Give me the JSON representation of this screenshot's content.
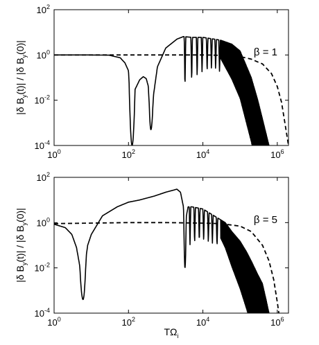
{
  "chart_data": [
    {
      "type": "line",
      "x_scale": "log",
      "y_scale": "log",
      "xlim": [
        1,
        2000000
      ],
      "ylim": [
        0.0001,
        100
      ],
      "x_ticks": [
        1,
        100,
        10000,
        1000000
      ],
      "y_ticks": [
        0.0001,
        0.01,
        1,
        100
      ],
      "x_tick_labels": [
        {
          "base": "10",
          "exp": "0"
        },
        {
          "base": "10",
          "exp": "2"
        },
        {
          "base": "10",
          "exp": "4"
        },
        {
          "base": "10",
          "exp": "6"
        }
      ],
      "y_tick_labels": [
        {
          "base": "10",
          "exp": "-4"
        },
        {
          "base": "10",
          "exp": "-2"
        },
        {
          "base": "10",
          "exp": "0"
        },
        {
          "base": "10",
          "exp": "2"
        }
      ],
      "xlabel": "",
      "ylabel": "|δ B_y(t)| / |δ B_y(0)|",
      "annotation": "β = 1",
      "series": [
        {
          "style": "solid",
          "envelope": [
            [
              1,
              1
            ],
            [
              10,
              1
            ],
            [
              30,
              0.98
            ],
            [
              60,
              0.75
            ],
            [
              80,
              0.45
            ],
            [
              100,
              0.2
            ],
            [
              125,
              0.0001
            ],
            [
              150,
              0.03
            ],
            [
              200,
              0.08
            ],
            [
              250,
              0.11
            ],
            [
              300,
              0.09
            ],
            [
              360,
              0.03
            ],
            [
              400,
              0.0005
            ],
            [
              450,
              0.01
            ],
            [
              600,
              0.3
            ],
            [
              1000,
              2
            ],
            [
              2000,
              5
            ],
            [
              3000,
              6.5
            ],
            [
              5000,
              6
            ],
            [
              10000,
              6
            ],
            [
              30000,
              4.5
            ],
            [
              60000,
              3
            ],
            [
              100000,
              1.5
            ],
            [
              200000,
              0.1
            ],
            [
              300000,
              0.01
            ],
            [
              400000,
              0.0015
            ],
            [
              600000,
              0.0001
            ]
          ],
          "dips": [
            {
              "x": 125,
              "y": 0.0001,
              "w": 0.08
            },
            {
              "x": 400,
              "y": 0.0005,
              "w": 0.07
            },
            {
              "x": 3300,
              "y": 0.03,
              "w": 0.02
            },
            {
              "x": 5000,
              "y": 0.06,
              "w": 0.02
            },
            {
              "x": 7000,
              "y": 0.1,
              "w": 0.02
            },
            {
              "x": 9500,
              "y": 0.15,
              "w": 0.02
            },
            {
              "x": 13000,
              "y": 0.15,
              "w": 0.02
            },
            {
              "x": 17000,
              "y": 0.2,
              "w": 0.02
            },
            {
              "x": 22000,
              "y": 0.2,
              "w": 0.02
            },
            {
              "x": 28000,
              "y": 0.15,
              "w": 0.02
            }
          ],
          "oscillation": {
            "start": 30000,
            "end": 600000,
            "floor": 0.0001
          }
        },
        {
          "style": "dashed",
          "points": [
            [
              1,
              1
            ],
            [
              1000,
              1
            ],
            [
              10000,
              1
            ],
            [
              30000,
              0.97
            ],
            [
              100000,
              0.85
            ],
            [
              200000,
              0.65
            ],
            [
              400000,
              0.4
            ],
            [
              700000,
              0.15
            ],
            [
              1000000,
              0.04
            ],
            [
              1300000,
              0.008
            ],
            [
              1600000,
              0.001
            ],
            [
              1800000,
              0.0003
            ],
            [
              2000000,
              0.0001
            ]
          ]
        }
      ]
    },
    {
      "type": "line",
      "x_scale": "log",
      "y_scale": "log",
      "xlim": [
        1,
        2000000
      ],
      "ylim": [
        0.0001,
        100
      ],
      "x_ticks": [
        1,
        100,
        10000,
        1000000
      ],
      "y_ticks": [
        0.0001,
        0.01,
        1,
        100
      ],
      "x_tick_labels": [
        {
          "base": "10",
          "exp": "0"
        },
        {
          "base": "10",
          "exp": "2"
        },
        {
          "base": "10",
          "exp": "4"
        },
        {
          "base": "10",
          "exp": "6"
        }
      ],
      "y_tick_labels": [
        {
          "base": "10",
          "exp": "-4"
        },
        {
          "base": "10",
          "exp": "-2"
        },
        {
          "base": "10",
          "exp": "0"
        },
        {
          "base": "10",
          "exp": "2"
        }
      ],
      "xlabel": "TΩ_i",
      "ylabel": "|δ B_y(t)| / |δ B_y(0)|",
      "annotation": "β = 5",
      "series": [
        {
          "style": "solid",
          "envelope": [
            [
              1,
              0.85
            ],
            [
              2,
              0.6
            ],
            [
              3,
              0.3
            ],
            [
              4,
              0.08
            ],
            [
              5,
              0.01
            ],
            [
              6,
              0.0004
            ],
            [
              7,
              0.02
            ],
            [
              8,
              0.1
            ],
            [
              10,
              0.3
            ],
            [
              20,
              2
            ],
            [
              50,
              5
            ],
            [
              100,
              8
            ],
            [
              200,
              10
            ],
            [
              500,
              15
            ],
            [
              1000,
              22
            ],
            [
              2000,
              30
            ],
            [
              2500,
              22
            ],
            [
              3000,
              5
            ],
            [
              3300,
              0.01
            ],
            [
              3600,
              2
            ],
            [
              4000,
              5
            ],
            [
              5000,
              5
            ],
            [
              7000,
              4.5
            ],
            [
              10000,
              4
            ],
            [
              20000,
              2
            ],
            [
              40000,
              1
            ],
            [
              60000,
              0.4
            ],
            [
              100000,
              0.15
            ],
            [
              150000,
              0.05
            ],
            [
              200000,
              0.02
            ],
            [
              300000,
              0.005
            ],
            [
              400000,
              0.002
            ],
            [
              500000,
              0.0004
            ],
            [
              600000,
              0.0001
            ]
          ],
          "dips": [
            {
              "x": 6,
              "y": 0.0004,
              "w": 0.09
            },
            {
              "x": 3300,
              "y": 0.01,
              "w": 0.03
            },
            {
              "x": 4500,
              "y": 0.08,
              "w": 0.02
            },
            {
              "x": 6000,
              "y": 0.1,
              "w": 0.02
            },
            {
              "x": 8000,
              "y": 0.12,
              "w": 0.02
            },
            {
              "x": 10500,
              "y": 0.12,
              "w": 0.02
            },
            {
              "x": 14000,
              "y": 0.12,
              "w": 0.02
            },
            {
              "x": 18000,
              "y": 0.1,
              "w": 0.02
            },
            {
              "x": 24000,
              "y": 0.08,
              "w": 0.02
            }
          ],
          "oscillation": {
            "start": 30000,
            "end": 600000,
            "floor": 0.0001
          }
        },
        {
          "style": "dashed",
          "points": [
            [
              1,
              0.9
            ],
            [
              100,
              1
            ],
            [
              1000,
              1
            ],
            [
              10000,
              0.95
            ],
            [
              30000,
              0.9
            ],
            [
              100000,
              0.7
            ],
            [
              200000,
              0.4
            ],
            [
              400000,
              0.1
            ],
            [
              600000,
              0.02
            ],
            [
              800000,
              0.003
            ],
            [
              1000000,
              0.0003
            ],
            [
              1100000,
              0.0001
            ]
          ]
        }
      ]
    }
  ]
}
